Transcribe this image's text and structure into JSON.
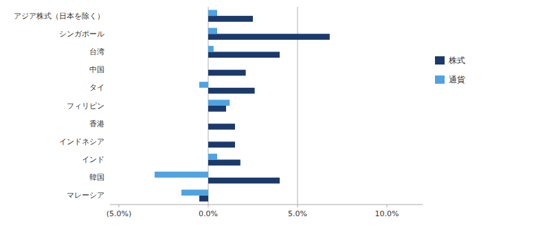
{
  "chart_data": {
    "type": "bar",
    "orientation": "horizontal",
    "categories": [
      "マレーシア",
      "韓国",
      "インド",
      "インドネシア",
      "香港",
      "フィリピン",
      "タイ",
      "中国",
      "台湾",
      "シンガポール",
      "アジア株式（日本を除く）"
    ],
    "series": [
      {
        "name": "株式",
        "color": "#1b3a6b",
        "values": [
          -0.5,
          4.0,
          1.8,
          1.5,
          1.5,
          1.0,
          2.6,
          2.1,
          4.0,
          6.8,
          2.5
        ]
      },
      {
        "name": "通貨",
        "color": "#4fa3e0",
        "values": [
          -1.5,
          -3.0,
          0.5,
          0.0,
          0.0,
          1.2,
          -0.5,
          0.0,
          0.3,
          0.5,
          0.5
        ]
      }
    ],
    "xlim": [
      -5.5,
      12.0
    ],
    "xticks": [
      {
        "value": -5.0,
        "label": "(5.0%)"
      },
      {
        "value": 0.0,
        "label": "0.0%"
      },
      {
        "value": 5.0,
        "label": "5.0%"
      },
      {
        "value": 10.0,
        "label": "10.0%"
      }
    ],
    "reference_lines": [
      0.0,
      5.0
    ],
    "grid": false,
    "legend": "right"
  }
}
